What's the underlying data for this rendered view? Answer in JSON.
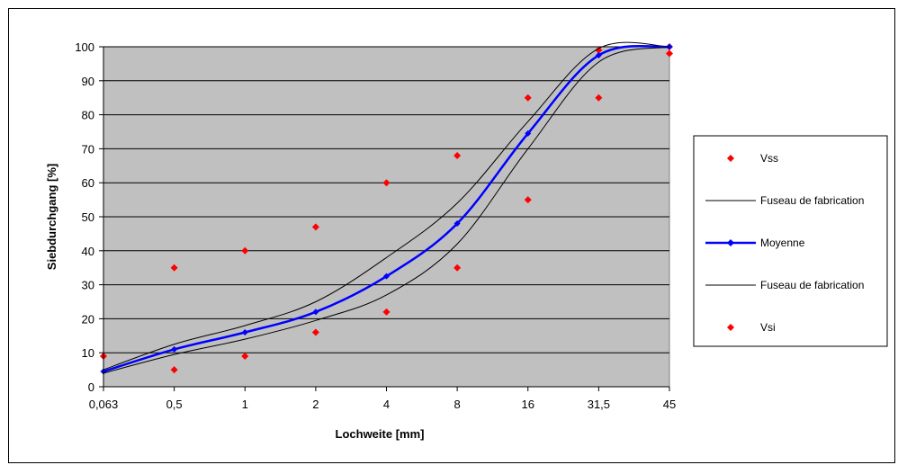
{
  "chart_data": {
    "type": "line",
    "title": "",
    "xlabel": "Lochweite [mm]",
    "ylabel": "Siebdurchgang [%]",
    "categories": [
      "0,063",
      "0,5",
      "1",
      "2",
      "4",
      "8",
      "16",
      "31,5",
      "45"
    ],
    "ylim": [
      0,
      100
    ],
    "yticks": [
      0,
      10,
      20,
      30,
      40,
      50,
      60,
      70,
      80,
      90,
      100
    ],
    "grid": "horizontal",
    "plot_background": "#c0c0c0",
    "legend_position": "right",
    "series": [
      {
        "name": "Vss",
        "kind": "markers",
        "color": "#ff0000",
        "marker": "diamond",
        "values": [
          9,
          35,
          40,
          47,
          60,
          68,
          85,
          99,
          100
        ]
      },
      {
        "name": "Fuseau de fabrication",
        "kind": "smooth-line",
        "color": "#000000",
        "values": [
          5,
          12.5,
          18,
          25,
          38,
          54,
          78,
          99.5,
          100
        ]
      },
      {
        "name": "Moyenne",
        "kind": "smooth-line-markers",
        "color": "#0000ff",
        "marker": "diamond",
        "values": [
          4.5,
          11,
          16,
          22,
          32.5,
          48,
          74.5,
          97.5,
          100
        ]
      },
      {
        "name": "Fuseau de fabrication",
        "kind": "smooth-line",
        "color": "#000000",
        "values": [
          4,
          9.5,
          14,
          19.5,
          27,
          42,
          70,
          95.5,
          100
        ]
      },
      {
        "name": "Vsi",
        "kind": "markers",
        "color": "#ff0000",
        "marker": "diamond",
        "values": [
          null,
          5,
          9,
          16,
          22,
          35,
          55,
          85,
          98
        ]
      }
    ]
  }
}
